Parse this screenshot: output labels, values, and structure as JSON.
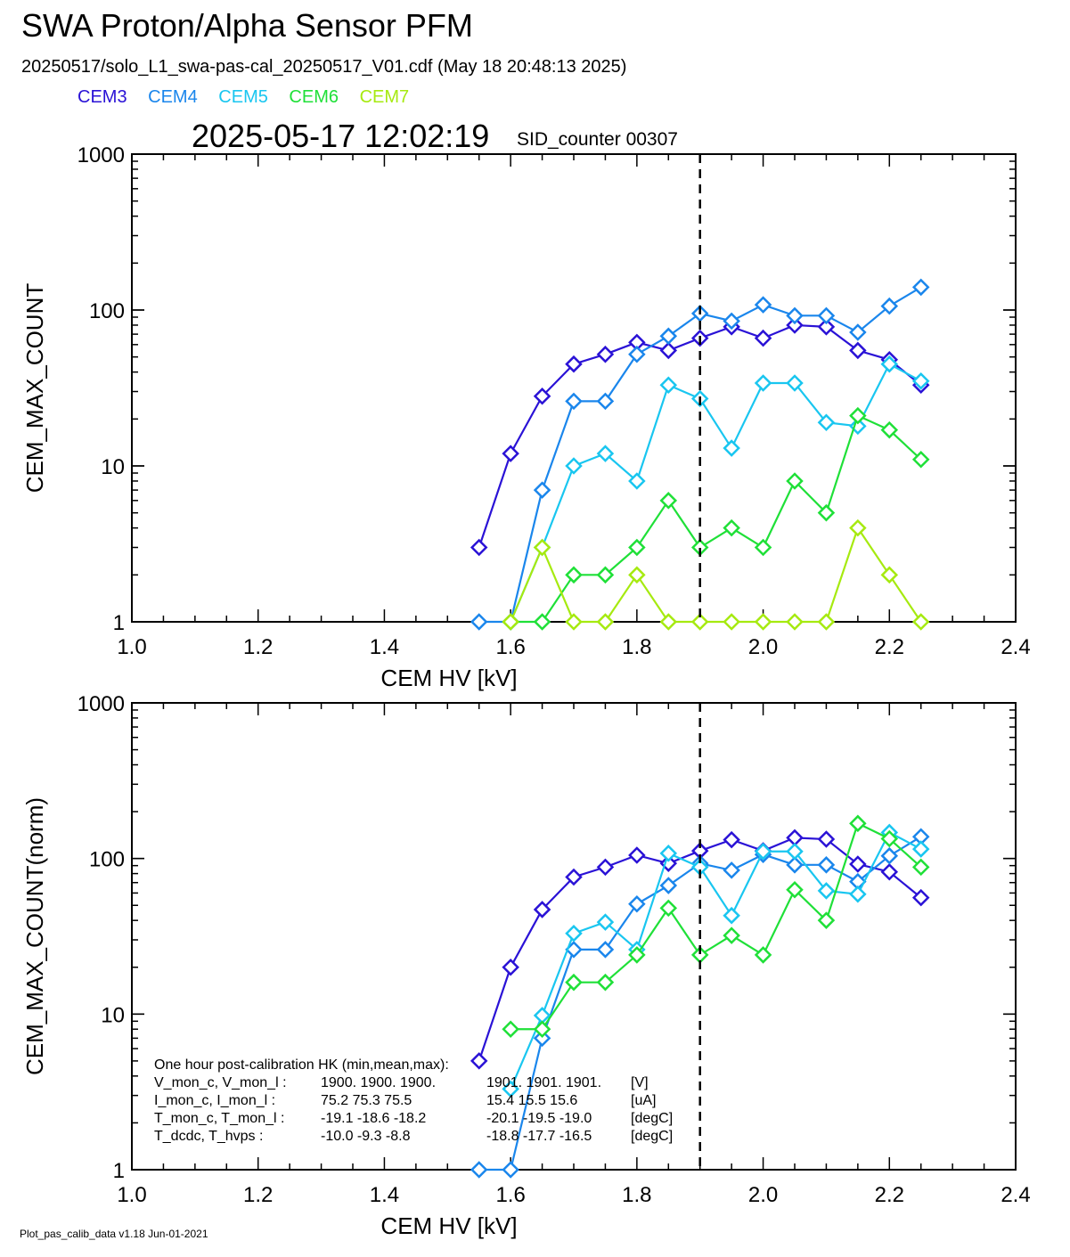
{
  "header": {
    "title": "SWA Proton/Alpha Sensor PFM",
    "subtitle": "20250517/solo_L1_swa-pas-cal_20250517_V01.cdf  (May 18 20:48:13 2025)",
    "timestamp": "2025-05-17 12:02:19",
    "sid_counter": "SID_counter 00307"
  },
  "legend": [
    {
      "name": "CEM3",
      "color": "#2a12d6"
    },
    {
      "name": "CEM4",
      "color": "#1a86ec"
    },
    {
      "name": "CEM5",
      "color": "#19c6f0"
    },
    {
      "name": "CEM6",
      "color": "#1fe038"
    },
    {
      "name": "CEM7",
      "color": "#a6ea10"
    }
  ],
  "footer": "Plot_pas_calib_data v1.18 Jun-01-2021",
  "hk_box": {
    "title": "One hour post-calibration HK (min,mean,max):",
    "rows": [
      {
        "label": "V_mon_c, V_mon_l :",
        "c": "1900.  1900.  1900.",
        "l": "1901.  1901.  1901.",
        "unit": "[V]"
      },
      {
        "label": "I_mon_c,  I_mon_l :",
        "c": "75.2   75.3   75.5",
        "l": "15.4   15.5   15.6",
        "unit": "[uA]"
      },
      {
        "label": "T_mon_c, T_mon_l :",
        "c": "-19.1  -18.6  -18.2",
        "l": "-20.1  -19.5  -19.0",
        "unit": "[degC]"
      },
      {
        "label": "T_dcdc,    T_hvps :",
        "c": "-10.0   -9.3   -8.8",
        "l": "-18.8  -17.7  -16.5",
        "unit": "[degC]"
      }
    ]
  },
  "chart_data": [
    {
      "type": "line",
      "xlabel": "CEM HV [kV]",
      "ylabel": "CEM_MAX_COUNT",
      "xlim": [
        1.0,
        2.4
      ],
      "ylim": [
        1,
        1000
      ],
      "yscale": "log",
      "x_ticks": [
        "1.0",
        "1.2",
        "1.4",
        "1.6",
        "1.8",
        "2.0",
        "2.2",
        "2.4"
      ],
      "y_ticks": [
        "1",
        "10",
        "100",
        "1000"
      ],
      "vline": 1.9,
      "marker": "diamond",
      "x": [
        1.55,
        1.6,
        1.65,
        1.7,
        1.75,
        1.8,
        1.85,
        1.9,
        1.95,
        2.0,
        2.05,
        2.1,
        2.15,
        2.2,
        2.25
      ],
      "series": [
        {
          "name": "CEM3",
          "values": [
            3,
            12,
            28,
            45,
            52,
            62,
            55,
            66,
            78,
            66,
            80,
            78,
            55,
            48,
            33
          ]
        },
        {
          "name": "CEM4",
          "values": [
            1,
            1,
            7,
            26,
            26,
            52,
            68,
            95,
            85,
            108,
            92,
            92,
            72,
            106,
            140
          ]
        },
        {
          "name": "CEM5",
          "values": [
            null,
            1,
            3,
            10,
            12,
            8,
            33,
            27,
            13,
            34,
            34,
            19,
            18,
            45,
            35
          ]
        },
        {
          "name": "CEM6",
          "values": [
            null,
            1,
            1,
            2,
            2,
            3,
            6,
            3,
            4,
            3,
            8,
            5,
            21,
            17,
            11
          ]
        },
        {
          "name": "CEM7",
          "values": [
            null,
            1,
            3,
            1,
            1,
            2,
            1,
            1,
            1,
            1,
            1,
            1,
            4,
            2,
            1
          ]
        }
      ]
    },
    {
      "type": "line",
      "xlabel": "CEM HV [kV]",
      "ylabel": "CEM_MAX_COUNT(norm)",
      "xlim": [
        1.0,
        2.4
      ],
      "ylim": [
        1,
        1000
      ],
      "yscale": "log",
      "x_ticks": [
        "1.0",
        "1.2",
        "1.4",
        "1.6",
        "1.8",
        "2.0",
        "2.2",
        "2.4"
      ],
      "y_ticks": [
        "1",
        "10",
        "100",
        "1000"
      ],
      "vline": 1.9,
      "marker": "diamond",
      "x": [
        1.55,
        1.6,
        1.65,
        1.7,
        1.75,
        1.8,
        1.85,
        1.9,
        1.95,
        2.0,
        2.05,
        2.1,
        2.15,
        2.2,
        2.25
      ],
      "series": [
        {
          "name": "CEM3",
          "values": [
            5,
            20,
            47,
            76,
            88,
            105,
            93,
            112,
            132,
            112,
            136,
            133,
            92,
            82,
            56
          ]
        },
        {
          "name": "CEM4",
          "values": [
            1,
            1,
            7,
            26,
            26,
            51,
            67,
            93,
            84,
            106,
            91,
            91,
            71,
            104,
            138
          ]
        },
        {
          "name": "CEM5",
          "values": [
            null,
            3.3,
            9.8,
            33,
            39,
            26,
            108,
            88,
            43,
            111,
            111,
            62,
            59,
            147,
            115
          ]
        },
        {
          "name": "CEM6",
          "values": [
            null,
            8,
            8,
            16,
            16,
            24,
            48,
            24,
            32,
            24,
            63,
            40,
            168,
            134,
            88
          ]
        }
      ]
    }
  ]
}
